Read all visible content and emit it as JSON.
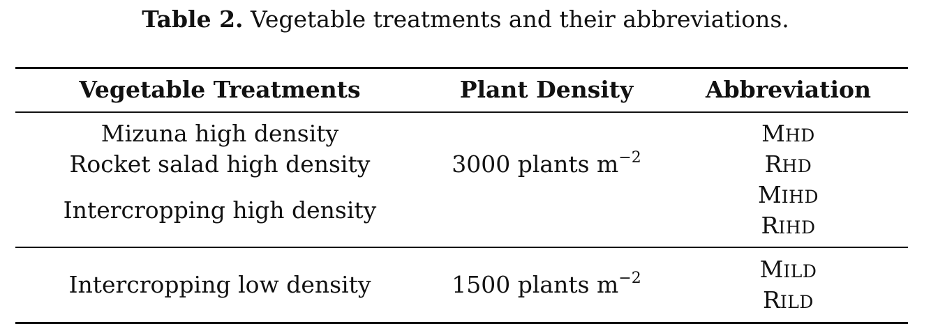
{
  "caption": {
    "label": "Table 2.",
    "text": "Vegetable treatments and their abbreviations."
  },
  "table": {
    "headers": [
      "Vegetable Treatments",
      "Plant Density",
      "Abbreviation"
    ],
    "groups": [
      {
        "treatments": [
          "Mizuna high density",
          "Rocket salad high density",
          "Intercropping high density"
        ],
        "density": {
          "value": "3000 plants m",
          "exponent": "−2"
        },
        "abbreviations": [
          {
            "first": "M",
            "rest": "HD"
          },
          {
            "first": "R",
            "rest": "HD"
          },
          {
            "first": "M",
            "rest": "IHD"
          },
          {
            "first": "R",
            "rest": "IHD"
          }
        ]
      },
      {
        "treatments": [
          "Intercropping low density"
        ],
        "density": {
          "value": "1500 plants m",
          "exponent": "−2"
        },
        "abbreviations": [
          {
            "first": "M",
            "rest": "ILD"
          },
          {
            "first": "R",
            "rest": "ILD"
          }
        ]
      }
    ]
  }
}
